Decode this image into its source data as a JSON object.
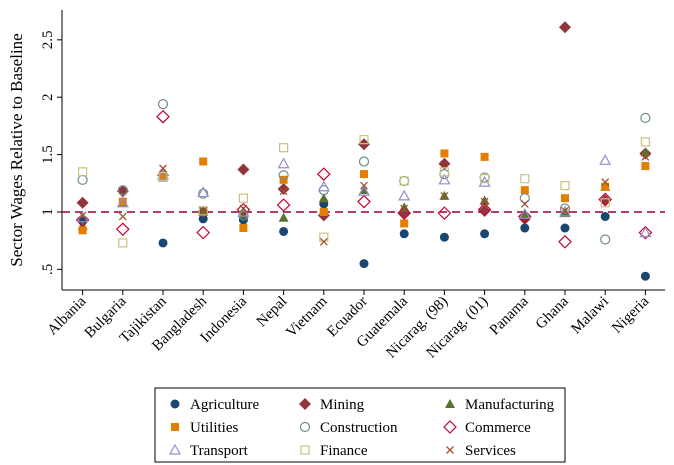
{
  "chart_data": {
    "type": "scatter",
    "y_label": "Sector Wages Relative to Baseline",
    "categories": [
      "Albania",
      "Bulgaria",
      "Tajikistan",
      "Bangladesh",
      "Indonesia",
      "Nepal",
      "Vietnam",
      "Ecuador",
      "Guatemala",
      "Nicarag. (98)",
      "Nicarag. (01)",
      "Panama",
      "Ghana",
      "Malawi",
      "Nigeria"
    ],
    "ylim": [
      0.32,
      2.76
    ],
    "yticks": [
      {
        "value": 0.5,
        "label": ".5"
      },
      1,
      1.5,
      2,
      2.5
    ],
    "reference_line": {
      "value": 1,
      "color": "#990033"
    },
    "series": [
      {
        "name": "Agriculture",
        "color": "#1a476f",
        "marker": "circle",
        "values": [
          0.92,
          1.18,
          0.73,
          0.94,
          0.93,
          0.83,
          1.07,
          0.55,
          0.81,
          0.78,
          0.81,
          0.86,
          0.86,
          0.96,
          0.44
        ]
      },
      {
        "name": "Mining",
        "color": "#90353b",
        "marker": "diamond",
        "values": [
          1.08,
          1.18,
          1.32,
          1.0,
          1.37,
          1.2,
          0.97,
          1.59,
          0.99,
          1.42,
          1.01,
          0.94,
          2.61,
          1.1,
          1.51
        ]
      },
      {
        "name": "Manufacturing",
        "color": "#55752f",
        "marker": "triangle",
        "values": [
          0.88,
          1.08,
          1.3,
          1.0,
          0.98,
          0.95,
          1.12,
          1.19,
          1.04,
          1.14,
          1.1,
          0.98,
          0.99,
          1.22,
          1.52
        ]
      },
      {
        "name": "Utilities",
        "color": "#e37e00",
        "marker": "square",
        "values": [
          0.84,
          1.09,
          1.32,
          1.44,
          0.86,
          1.28,
          1.0,
          1.33,
          0.9,
          1.51,
          1.48,
          1.19,
          1.12,
          1.22,
          1.4
        ]
      },
      {
        "name": "Construction",
        "color": "#6e8e84",
        "marker": "circle-open",
        "values": [
          1.28,
          1.19,
          1.94,
          1.16,
          0.97,
          1.32,
          1.19,
          1.44,
          1.27,
          1.33,
          1.3,
          1.12,
          1.03,
          0.76,
          1.82
        ]
      },
      {
        "name": "Commerce",
        "color": "#c10534",
        "marker": "diamond-open",
        "values": [
          0.93,
          0.85,
          1.83,
          0.82,
          1.02,
          1.06,
          1.33,
          1.09,
          0.99,
          0.99,
          1.02,
          0.96,
          0.74,
          1.11,
          0.82
        ]
      },
      {
        "name": "Transport",
        "color": "#938dd2",
        "marker": "triangle-open",
        "values": [
          0.95,
          1.08,
          1.32,
          1.17,
          1.0,
          1.42,
          1.22,
          1.18,
          1.14,
          1.28,
          1.26,
          0.98,
          1.0,
          1.45,
          0.82
        ]
      },
      {
        "name": "Finance",
        "color": "#cac27e",
        "marker": "square-open",
        "values": [
          1.35,
          0.73,
          1.31,
          1.01,
          1.12,
          1.56,
          0.78,
          1.63,
          1.27,
          1.35,
          1.29,
          1.29,
          1.23,
          1.08,
          1.61
        ]
      },
      {
        "name": "Services",
        "color": "#a0522d",
        "marker": "x",
        "values": [
          0.97,
          0.96,
          1.38,
          1.01,
          1.03,
          1.18,
          0.74,
          1.23,
          1.03,
          1.14,
          1.09,
          1.07,
          1.01,
          1.26,
          1.48
        ]
      }
    ]
  }
}
